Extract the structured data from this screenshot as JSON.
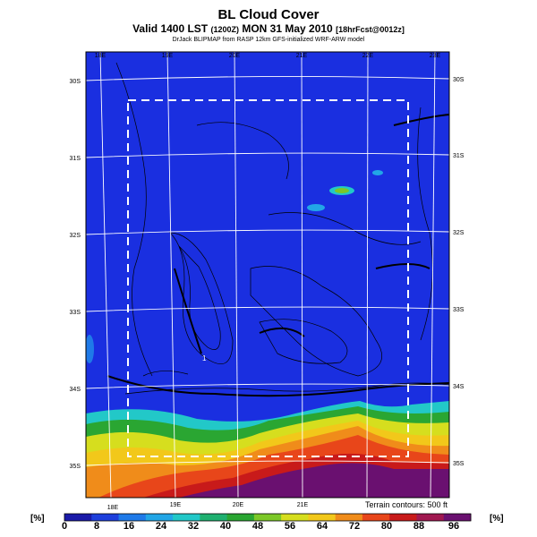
{
  "header": {
    "title": "BL Cloud Cover",
    "subtitle_main": "Valid 1400 LST",
    "subtitle_utc": "(1200Z)",
    "subtitle_date": "MON 31 May 2010",
    "subtitle_fcst": "[18hrFcst@0012z]",
    "credit": "DrJack BLIPMAP from RASP 12km GFS-initialized WRF-ARW model"
  },
  "map": {
    "top_lon_labels": [
      "18E",
      "19E",
      "20E",
      "21E",
      "22E",
      "23E"
    ],
    "bottom_lon_labels": [
      "18E",
      "19E",
      "20E",
      "21E"
    ],
    "left_lat_labels": [
      "30S",
      "31S",
      "32S",
      "33S",
      "34S",
      "35S"
    ],
    "right_lat_labels": [
      "30S",
      "31S",
      "32S",
      "33S",
      "34S",
      "35S"
    ],
    "terrain_note": "Terrain contours: 500 ft",
    "point_label": "1"
  },
  "colorbar": {
    "unit_left": "[%]",
    "unit_right": "[%]",
    "tick_labels": [
      "0",
      "8",
      "16",
      "24",
      "32",
      "40",
      "48",
      "56",
      "64",
      "72",
      "80",
      "88",
      "96"
    ],
    "colors": [
      "#1a1aa8",
      "#1e3fdc",
      "#1f7ae8",
      "#22a6e6",
      "#22c8c8",
      "#1fb070",
      "#2aa632",
      "#7cc828",
      "#d6de1e",
      "#f2c81a",
      "#f08c1a",
      "#e8461a",
      "#c81a1a",
      "#a01850",
      "#6a1070"
    ]
  },
  "styles": {
    "background_cloud": "#1a2fe0",
    "coast_high": "#6a1070",
    "grid": "#ffffff",
    "terrain": "#000000"
  }
}
